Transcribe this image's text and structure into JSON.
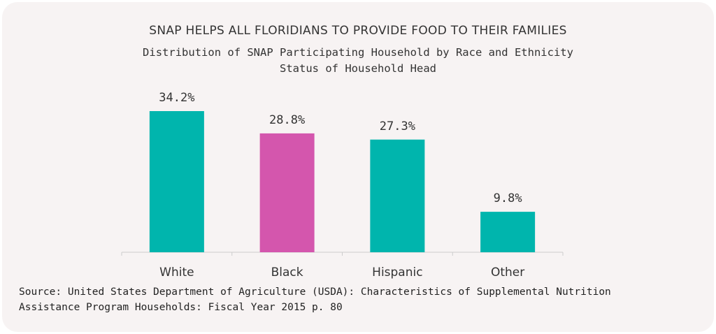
{
  "chart_data": {
    "type": "bar",
    "title": "SNAP HELPS ALL FLORIDIANS TO PROVIDE FOOD TO THEIR FAMILIES",
    "subtitle": [
      "Distribution of SNAP Participating Household by Race and Ethnicity",
      "Status of Household Head"
    ],
    "categories": [
      "White",
      "Black",
      "Hispanic",
      "Other"
    ],
    "values": [
      34.2,
      28.8,
      27.3,
      9.8
    ],
    "data_labels": [
      "34.2%",
      "28.8%",
      "27.3%",
      "9.8%"
    ],
    "colors": [
      "#00b5ad",
      "#d456ad",
      "#00b5ad",
      "#00b5ad"
    ],
    "xlabel": "",
    "ylabel": "",
    "ylim": [
      0,
      34.2
    ],
    "grid": false,
    "source": [
      "Source: United States Department of Agriculture (USDA): Characteristics of Supplemental Nutrition",
      "Assistance Program Households: Fiscal Year 2015 p. 80"
    ]
  }
}
